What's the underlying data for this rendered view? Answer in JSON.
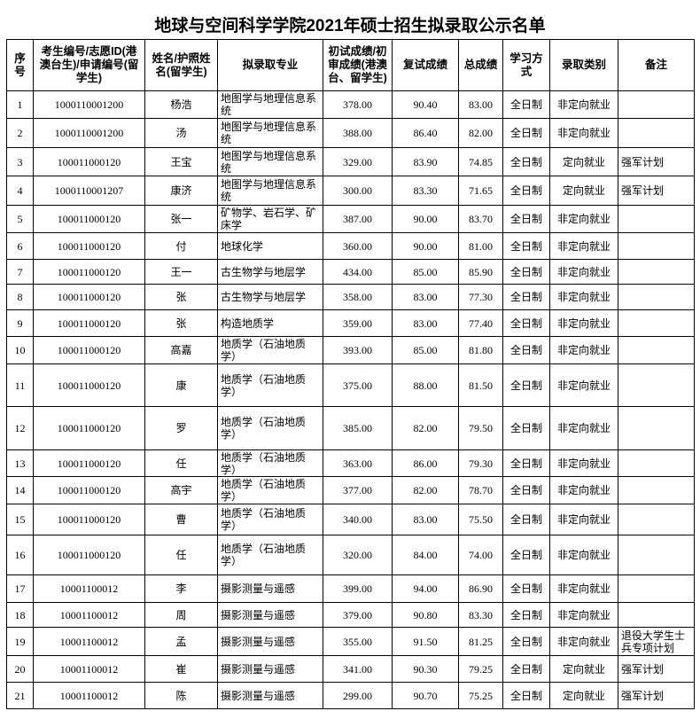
{
  "title": "地球与空间科学学院2021年硕士招生拟录取公示名单",
  "table": {
    "header": [
      "序号",
      "考生编号/志愿ID(港澳台生)/申请编号(留学生)",
      "姓名/护照姓名(留学生)",
      "拟录取专业",
      "初试成绩/初审成绩(港澳台、留学生)",
      "复试成绩",
      "总成绩",
      "学习方式",
      "录取类别",
      "备注"
    ],
    "rows": [
      [
        "1",
        "1000110001200",
        "杨浩",
        "地图学与地理信息系统",
        "378.00",
        "90.40",
        "83.00",
        "全日制",
        "非定向就业",
        null
      ],
      [
        "2",
        "1000110001200",
        "汤",
        "地图学与地理信息系统",
        "388.00",
        "86.40",
        "82.00",
        "全日制",
        "非定向就业",
        null
      ],
      [
        "3",
        "100011000120",
        "王宝",
        "地图学与地理信息系统",
        "329.00",
        "83.90",
        "74.85",
        "全日制",
        "定向就业",
        "强军计划"
      ],
      [
        "4",
        "1000110001207",
        "康济",
        "地图学与地理信息系统",
        "300.00",
        "83.30",
        "71.65",
        "全日制",
        "定向就业",
        "强军计划"
      ],
      [
        "5",
        "100011000120",
        "张一",
        "矿物学、岩石学、矿床学",
        "387.00",
        "90.00",
        "83.70",
        "全日制",
        "非定向就业",
        null
      ],
      [
        "6",
        "100011000120",
        "付",
        "地球化学",
        "360.00",
        "90.00",
        "81.00",
        "全日制",
        "非定向就业",
        null
      ],
      [
        "7",
        "100011000120",
        "王一",
        "古生物学与地层学",
        "434.00",
        "85.00",
        "85.90",
        "全日制",
        "非定向就业",
        null
      ],
      [
        "8",
        "100011000120",
        "张",
        "古生物学与地层学",
        "358.00",
        "83.00",
        "77.30",
        "全日制",
        "非定向就业",
        null
      ],
      [
        "9",
        "100011000120",
        "张",
        "构造地质学",
        "359.00",
        "83.00",
        "77.40",
        "全日制",
        "非定向就业",
        null
      ],
      [
        "10",
        "100011000120",
        "高嘉",
        "地质学（石油地质学）",
        "393.00",
        "85.00",
        "81.80",
        "全日制",
        "非定向就业",
        null
      ],
      [
        "11",
        "100011000120",
        "康",
        "地质学（石油地质学）",
        "375.00",
        "88.00",
        "81.50",
        "全日制",
        "非定向就业",
        null
      ],
      [
        "12",
        "100011000120",
        "罗",
        "地质学（石油地质学）",
        "385.00",
        "82.00",
        "79.50",
        "全日制",
        "非定向就业",
        null
      ],
      [
        "13",
        "100011000120",
        "任",
        "地质学（石油地质学）",
        "363.00",
        "86.00",
        "79.30",
        "全日制",
        "非定向就业",
        null
      ],
      [
        "14",
        "100011000120",
        "高宇",
        "地质学（石油地质学）",
        "377.00",
        "82.00",
        "78.70",
        "全日制",
        "非定向就业",
        null
      ],
      [
        "15",
        "100011000120",
        "曹",
        "地质学（石油地质学）",
        "340.00",
        "83.00",
        "75.50",
        "全日制",
        "非定向就业",
        null
      ],
      [
        "16",
        "100011000120",
        "任",
        "地质学（石油地质学）",
        "320.00",
        "84.00",
        "74.00",
        "全日制",
        "非定向就业",
        null
      ],
      [
        "17",
        "10001100012",
        "李",
        "摄影测量与遥感",
        "399.00",
        "94.00",
        "86.90",
        "全日制",
        "非定向就业",
        null
      ],
      [
        "18",
        "10001100012",
        "周",
        "摄影测量与遥感",
        "379.00",
        "90.80",
        "83.30",
        "全日制",
        "非定向就业",
        null
      ],
      [
        "19",
        "10001100012",
        "孟",
        "摄影测量与遥感",
        "355.00",
        "91.50",
        "81.25",
        "全日制",
        "非定向就业",
        "退役大学生士兵专项计划"
      ],
      [
        "20",
        "10001100012",
        "崔",
        "摄影测量与遥感",
        "341.00",
        "90.30",
        "79.25",
        "全日制",
        "定向就业",
        "强军计划"
      ],
      [
        "21",
        "10001100012",
        "陈",
        "摄影测量与遥感",
        "299.00",
        "90.70",
        "75.25",
        "全日制",
        "定向就业",
        "强军计划"
      ]
    ]
  }
}
